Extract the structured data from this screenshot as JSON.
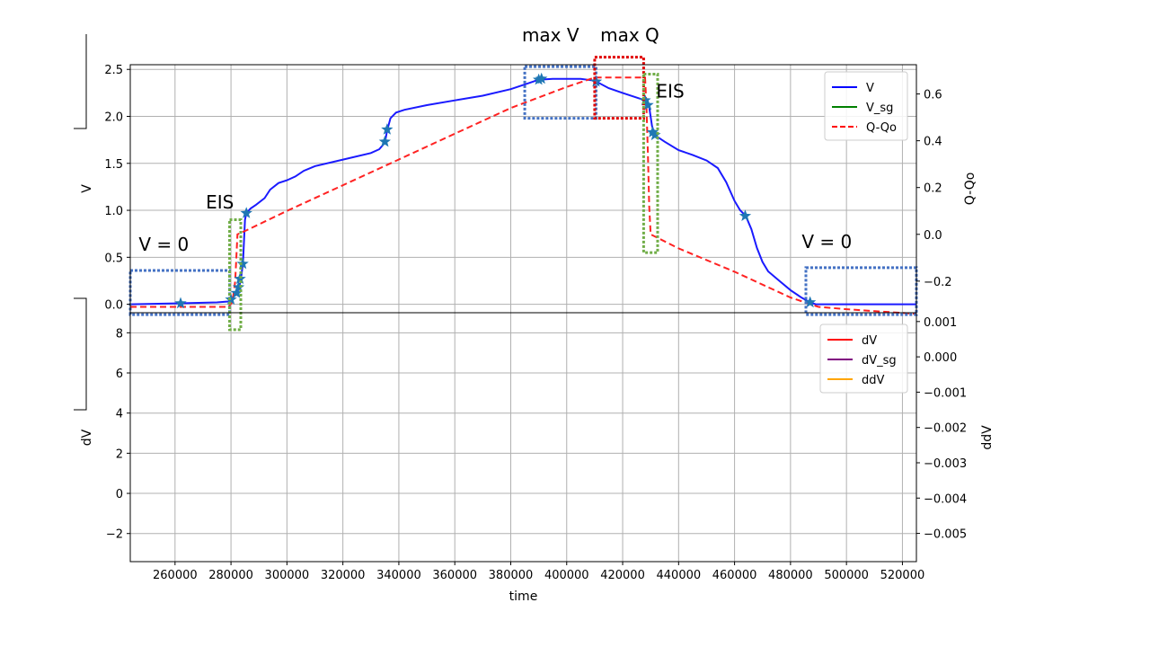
{
  "chart_data": {
    "type": "line",
    "xlabel": "time",
    "xlim": [
      244000,
      525000
    ],
    "xticks": [
      "260000",
      "280000",
      "300000",
      "320000",
      "340000",
      "360000",
      "380000",
      "400000",
      "420000",
      "440000",
      "460000",
      "480000",
      "500000",
      "520000"
    ],
    "top": {
      "ylabel_left": "V",
      "ylabel_right": "Q-Qo",
      "ylim_left": [
        -0.09,
        2.55
      ],
      "ylim_right": [
        -0.335,
        0.725
      ],
      "yticks_left": [
        "0.0",
        "0.5",
        "1.0",
        "1.5",
        "2.0",
        "2.5"
      ],
      "yticks_right": [
        "−0.2",
        "0.0",
        "0.2",
        "0.4",
        "0.6"
      ],
      "legend": [
        {
          "label": "V",
          "color": "#0000ff",
          "dash": "solid"
        },
        {
          "label": "V_sg",
          "color": "#008000",
          "dash": "solid"
        },
        {
          "label": "Q-Qo",
          "color": "#ff0000",
          "dash": "dashed"
        }
      ],
      "series": [
        {
          "name": "V",
          "color": "#1a1aff",
          "axis": "left",
          "points": [
            [
              244000,
              0.0
            ],
            [
              262000,
              0.01
            ],
            [
              275000,
              0.02
            ],
            [
              279000,
              0.03
            ],
            [
              281000,
              0.08
            ],
            [
              282500,
              0.15
            ],
            [
              283500,
              0.25
            ],
            [
              284300,
              0.45
            ],
            [
              285000,
              0.9
            ],
            [
              285500,
              0.97
            ],
            [
              287000,
              1.02
            ],
            [
              289000,
              1.06
            ],
            [
              292000,
              1.13
            ],
            [
              294000,
              1.22
            ],
            [
              297000,
              1.29
            ],
            [
              300000,
              1.32
            ],
            [
              303000,
              1.36
            ],
            [
              306000,
              1.42
            ],
            [
              310000,
              1.47
            ],
            [
              320000,
              1.54
            ],
            [
              330000,
              1.61
            ],
            [
              333000,
              1.65
            ],
            [
              335000,
              1.72
            ],
            [
              335800,
              1.85
            ],
            [
              337000,
              1.98
            ],
            [
              339000,
              2.04
            ],
            [
              342000,
              2.07
            ],
            [
              350000,
              2.12
            ],
            [
              360000,
              2.17
            ],
            [
              370000,
              2.22
            ],
            [
              380000,
              2.29
            ],
            [
              386000,
              2.35
            ],
            [
              390000,
              2.39
            ],
            [
              395000,
              2.4
            ],
            [
              405000,
              2.4
            ],
            [
              410000,
              2.38
            ],
            [
              415000,
              2.3
            ],
            [
              420000,
              2.25
            ],
            [
              425000,
              2.2
            ],
            [
              428000,
              2.17
            ],
            [
              429500,
              2.1
            ],
            [
              430500,
              1.9
            ],
            [
              431500,
              1.8
            ],
            [
              435000,
              1.73
            ],
            [
              440000,
              1.64
            ],
            [
              445000,
              1.59
            ],
            [
              450000,
              1.53
            ],
            [
              454000,
              1.45
            ],
            [
              457000,
              1.3
            ],
            [
              460000,
              1.1
            ],
            [
              462000,
              1.0
            ],
            [
              464000,
              0.94
            ],
            [
              466000,
              0.8
            ],
            [
              468000,
              0.6
            ],
            [
              470000,
              0.45
            ],
            [
              472000,
              0.35
            ],
            [
              476000,
              0.25
            ],
            [
              480000,
              0.15
            ],
            [
              484000,
              0.07
            ],
            [
              487000,
              0.02
            ],
            [
              489000,
              0.0
            ],
            [
              525000,
              0.0
            ]
          ]
        },
        {
          "name": "Q-Qo",
          "color": "#ff2222",
          "axis": "right",
          "dash": true,
          "points": [
            [
              244000,
              -0.31
            ],
            [
              260000,
              -0.31
            ],
            [
              279000,
              -0.31
            ],
            [
              280500,
              -0.29
            ],
            [
              281500,
              -0.2
            ],
            [
              282300,
              0.0
            ],
            [
              286000,
              0.02
            ],
            [
              300000,
              0.1
            ],
            [
              320000,
              0.21
            ],
            [
              340000,
              0.32
            ],
            [
              360000,
              0.43
            ],
            [
              380000,
              0.54
            ],
            [
              400000,
              0.63
            ],
            [
              410000,
              0.67
            ],
            [
              428000,
              0.67
            ],
            [
              428500,
              0.55
            ],
            [
              429000,
              0.35
            ],
            [
              429500,
              0.12
            ],
            [
              430000,
              0.0
            ],
            [
              440000,
              -0.06
            ],
            [
              460000,
              -0.16
            ],
            [
              480000,
              -0.27
            ],
            [
              490000,
              -0.31
            ],
            [
              500000,
              -0.32
            ],
            [
              525000,
              -0.34
            ]
          ]
        }
      ],
      "markers": {
        "symbol": "star",
        "color": "#1f77b4",
        "points": [
          [
            262000,
            0.01
          ],
          [
            280000,
            0.05
          ],
          [
            282000,
            0.12
          ],
          [
            282700,
            0.18
          ],
          [
            283200,
            0.27
          ],
          [
            284200,
            0.43
          ],
          [
            285500,
            0.97
          ],
          [
            335000,
            1.73
          ],
          [
            335800,
            1.86
          ],
          [
            390000,
            2.39
          ],
          [
            391000,
            2.4
          ],
          [
            410500,
            2.37
          ],
          [
            428000,
            2.17
          ],
          [
            429000,
            2.12
          ],
          [
            430700,
            1.83
          ],
          [
            431500,
            1.8
          ],
          [
            463800,
            0.94
          ],
          [
            487000,
            0.02
          ]
        ]
      },
      "annotations": [
        {
          "text": "V = 0",
          "x": 247000,
          "y": 0.57
        },
        {
          "text": "EIS",
          "x": 271000,
          "y": 1.02
        },
        {
          "text": "max V",
          "x": 384000,
          "y": 2.8
        },
        {
          "text": "max Q",
          "x": 412000,
          "y": 2.8
        },
        {
          "text": "EIS",
          "x": 432000,
          "y": 2.2
        },
        {
          "text": "V = 0",
          "x": 484000,
          "y": 0.6
        }
      ],
      "boxes": [
        {
          "color": "#4472c4",
          "x0": 244000,
          "x1": 279500,
          "y0": -0.11,
          "y1": 0.36
        },
        {
          "color": "#70ad47",
          "x0": 279500,
          "x1": 283500,
          "y0": -0.27,
          "y1": 0.9
        },
        {
          "color": "#4472c4",
          "x0": 385000,
          "x1": 410500,
          "y0": 1.98,
          "y1": 2.53
        },
        {
          "color": "#e00000",
          "x0": 410000,
          "x1": 427500,
          "y0": 1.98,
          "y1": 2.63
        },
        {
          "color": "#70ad47",
          "x0": 427500,
          "x1": 432500,
          "y0": 0.55,
          "y1": 2.45
        },
        {
          "color": "#4472c4",
          "x0": 485500,
          "x1": 525000,
          "y0": -0.11,
          "y1": 0.39
        }
      ]
    },
    "bottom": {
      "ylabel_left": "dV",
      "ylabel_right": "ddV",
      "ylim_left": [
        -3.4,
        9.0
      ],
      "ylim_right": [
        -0.0058,
        0.00125
      ],
      "yticks_left": [
        "8",
        "6",
        "4",
        "2",
        "0",
        "−2"
      ],
      "yticks_right": [
        "0.001",
        "0.000",
        "−0.001",
        "−0.002",
        "−0.003",
        "−0.004",
        "−0.005"
      ],
      "legend": [
        {
          "label": "dV",
          "color": "#ff0000",
          "dash": "solid"
        },
        {
          "label": "dV_sg",
          "color": "#800080",
          "dash": "solid"
        },
        {
          "label": "ddV",
          "color": "#ffa500",
          "dash": "solid"
        }
      ]
    }
  }
}
